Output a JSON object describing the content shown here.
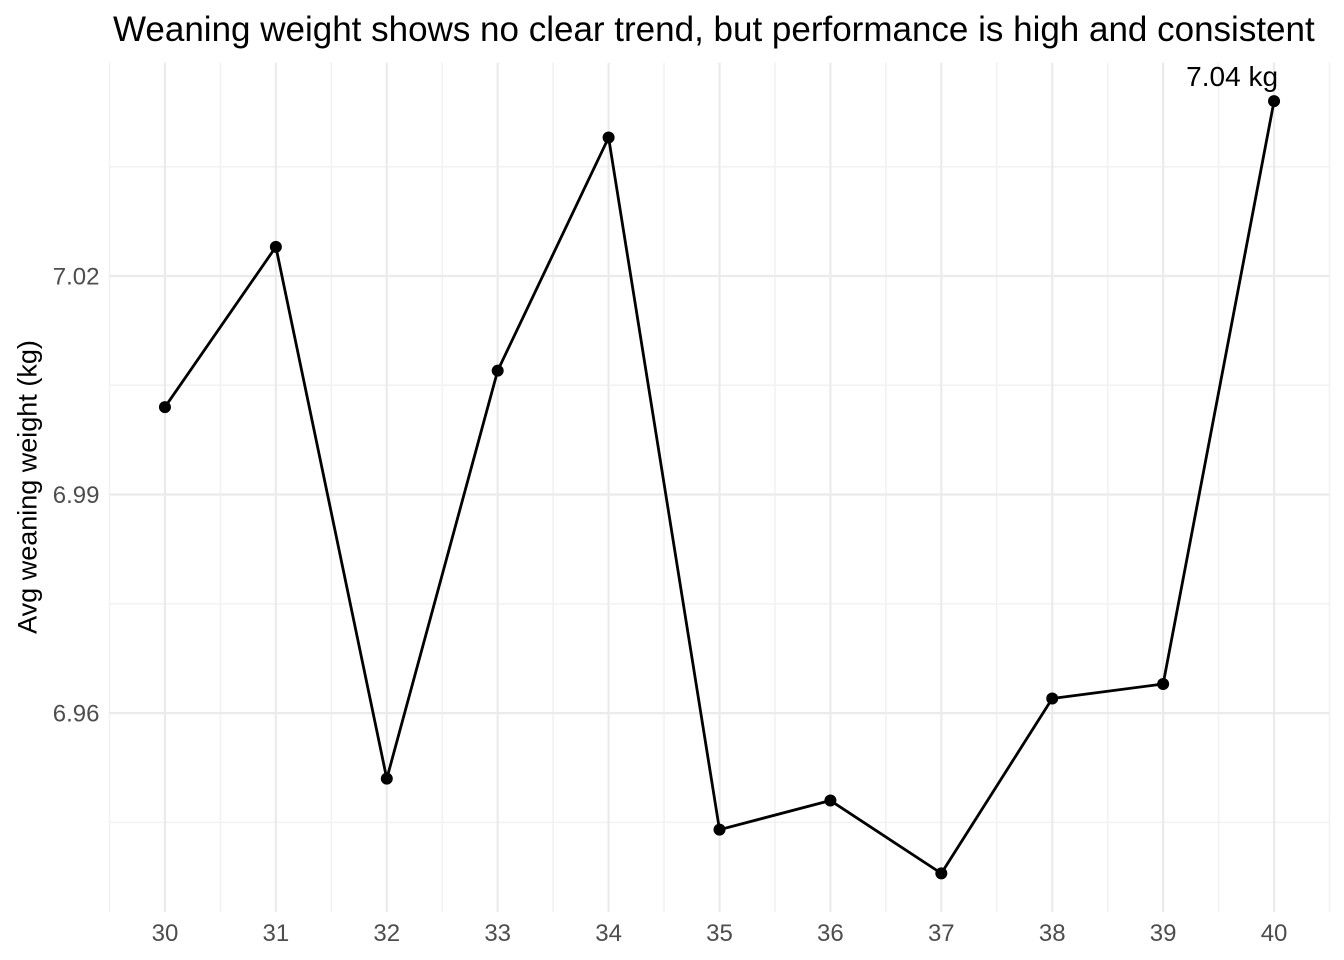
{
  "chart_data": {
    "type": "line",
    "title": "Weaning weight shows no clear trend, but performance is high and consistent",
    "xlabel": "",
    "ylabel": "Avg weaning weight (kg)",
    "x": [
      30,
      31,
      32,
      33,
      34,
      35,
      36,
      37,
      38,
      39,
      40
    ],
    "values": [
      7.002,
      7.024,
      6.951,
      7.007,
      7.039,
      6.944,
      6.948,
      6.938,
      6.962,
      6.964,
      7.044
    ],
    "annotation": {
      "label": "7.04 kg",
      "x": 40,
      "y": 7.044
    },
    "x_tick_labels": [
      "30",
      "31",
      "32",
      "33",
      "34",
      "35",
      "36",
      "37",
      "38",
      "39",
      "40"
    ],
    "x_tick_values": [
      30,
      31,
      32,
      33,
      34,
      35,
      36,
      37,
      38,
      39,
      40
    ],
    "y_tick_labels": [
      "6.96",
      "6.99",
      "7.02"
    ],
    "y_tick_values": [
      6.96,
      6.99,
      7.02
    ],
    "x_minor_values": [
      29.5,
      30.5,
      31.5,
      32.5,
      33.5,
      34.5,
      35.5,
      36.5,
      37.5,
      38.5,
      39.5,
      40.5
    ],
    "y_minor_values": [
      6.945,
      6.975,
      7.005,
      7.035
    ],
    "xlim": [
      29.5,
      40.5
    ],
    "ylim": [
      6.9327,
      7.0493
    ],
    "grid": "on",
    "legend": "none",
    "colors": {
      "line": "#000000",
      "point": "#000000",
      "grid_major": "#EBEBEB",
      "grid_minor": "#F2F2F2",
      "tick_text": "#4D4D4D",
      "title_text": "#000000",
      "annotation_text": "#000000",
      "background": "#FFFFFF"
    }
  }
}
